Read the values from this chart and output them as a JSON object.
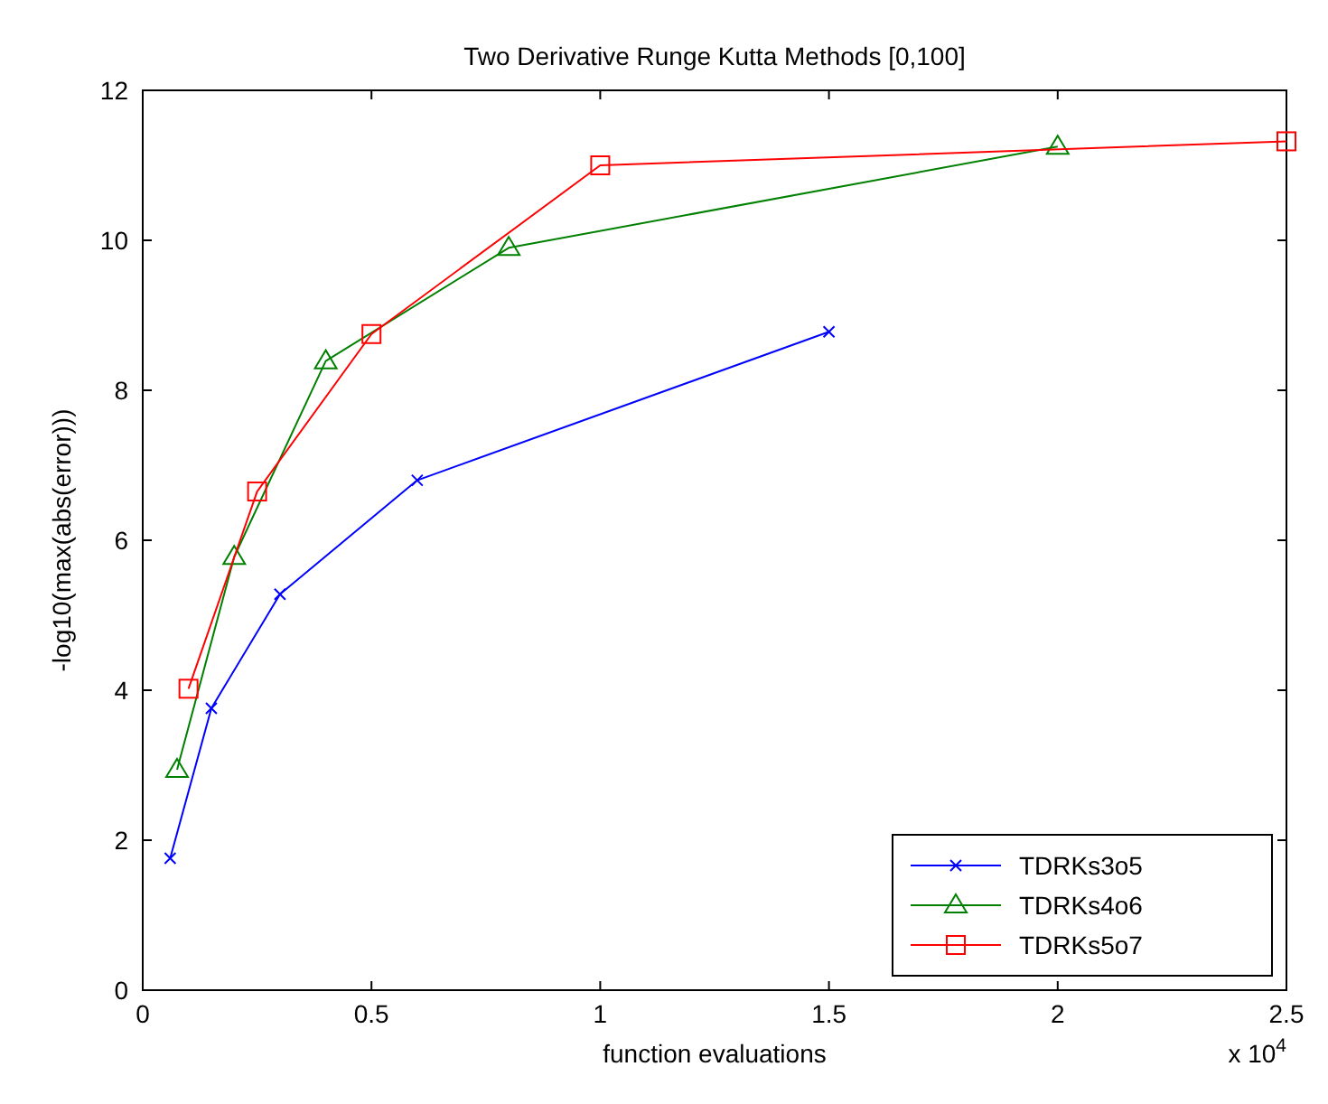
{
  "chart_data": {
    "type": "line",
    "title": "Two Derivative Runge Kutta Methods [0,100]",
    "xlabel": "function evaluations",
    "ylabel": "-log10(max(abs(error)))",
    "annotations": [
      "x 10$^{4}$"
    ],
    "xlim": [
      0,
      2.5
    ],
    "xticks": [
      0,
      0.5,
      1,
      1.5,
      2,
      2.5
    ],
    "ylim": [
      0,
      12
    ],
    "yticks": [
      0,
      2,
      4,
      6,
      8,
      10,
      12
    ],
    "grid": false,
    "legend": "bottom right",
    "series": [
      {
        "name": "TDRKs3o5",
        "color": "#0000ff",
        "marker": "cross",
        "x": [
          0.06,
          0.15,
          0.3,
          0.6,
          1.5
        ],
        "values": [
          1.76,
          3.76,
          5.28,
          6.8,
          8.78
        ]
      },
      {
        "name": "TDRKs4o6",
        "color": "#008000",
        "marker": "triangle",
        "x": [
          0.075,
          0.2,
          0.4,
          0.8,
          2.0
        ],
        "values": [
          2.94,
          5.78,
          8.39,
          9.9,
          11.25
        ]
      },
      {
        "name": "TDRKs5o7",
        "color": "#ff0000",
        "marker": "square",
        "x": [
          0.1,
          0.25,
          0.5,
          1.0,
          2.5
        ],
        "values": [
          4.02,
          6.65,
          8.75,
          11.0,
          11.32
        ]
      }
    ]
  }
}
